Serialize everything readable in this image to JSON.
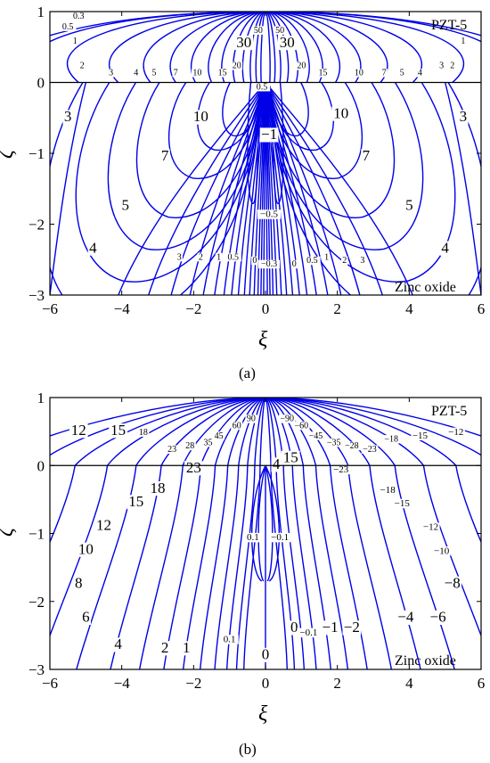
{
  "figure": {
    "caption_a": "(a)",
    "caption_b": "(b)"
  },
  "chart_data": [
    {
      "type": "contour",
      "panel": "(a)",
      "xlabel": "ξ",
      "ylabel": "ζ",
      "xlim": [
        -6,
        6
      ],
      "ylim": [
        -3,
        1
      ],
      "xticks": [
        "−6",
        "−4",
        "−2",
        "0",
        "2",
        "4",
        "6"
      ],
      "yticks": [
        "1",
        "0",
        "−1",
        "−2",
        "−3"
      ],
      "interface_y": 0,
      "upper_material": "PZT-5",
      "lower_material": "Zinc oxide",
      "line_color": "#0000e6",
      "upper_levels": [
        0.3,
        0.5,
        1,
        2,
        3,
        4,
        5,
        7,
        10,
        15,
        20,
        30,
        50
      ],
      "lower_levels": [
        -1,
        -0.5,
        -0.3,
        0,
        0.5,
        1,
        2,
        3,
        4,
        5,
        7,
        10
      ],
      "contour_labels": [
        {
          "text": "0.3",
          "x": -5.2,
          "y": 0.9
        },
        {
          "text": "0.5",
          "x": -5.5,
          "y": 0.75
        },
        {
          "text": "1",
          "x": -5.3,
          "y": 0.55
        },
        {
          "text": "2",
          "x": -5.1,
          "y": 0.2
        },
        {
          "text": "3",
          "x": -4.3,
          "y": 0.1
        },
        {
          "text": "4",
          "x": -3.6,
          "y": 0.1
        },
        {
          "text": "5",
          "x": -3.1,
          "y": 0.1
        },
        {
          "text": "7",
          "x": -2.5,
          "y": 0.1
        },
        {
          "text": "10",
          "x": -1.9,
          "y": 0.1
        },
        {
          "text": "15",
          "x": -1.2,
          "y": 0.1
        },
        {
          "text": "20",
          "x": -0.8,
          "y": 0.2
        },
        {
          "text": "30",
          "x": -0.6,
          "y": 0.5
        },
        {
          "text": "50",
          "x": -0.2,
          "y": 0.7
        },
        {
          "text": "50",
          "x": 0.4,
          "y": 0.7
        },
        {
          "text": "30",
          "x": 0.6,
          "y": 0.5
        },
        {
          "text": "20",
          "x": 1.0,
          "y": 0.2
        },
        {
          "text": "15",
          "x": 1.6,
          "y": 0.1
        },
        {
          "text": "10",
          "x": 2.6,
          "y": 0.1
        },
        {
          "text": "7",
          "x": 3.3,
          "y": 0.1
        },
        {
          "text": "5",
          "x": 3.8,
          "y": 0.1
        },
        {
          "text": "4",
          "x": 4.3,
          "y": 0.1
        },
        {
          "text": "3",
          "x": 4.9,
          "y": 0.2
        },
        {
          "text": "1",
          "x": 5.5,
          "y": 0.55
        },
        {
          "text": "2",
          "x": 5.2,
          "y": 0.2
        },
        {
          "text": "3",
          "x": -5.5,
          "y": -0.55
        },
        {
          "text": "3",
          "x": 5.5,
          "y": -0.55
        },
        {
          "text": "10",
          "x": -1.8,
          "y": -0.55
        },
        {
          "text": "10",
          "x": 2.1,
          "y": -0.5
        },
        {
          "text": "7",
          "x": -2.8,
          "y": -1.1
        },
        {
          "text": "7",
          "x": 2.8,
          "y": -1.1
        },
        {
          "text": "5",
          "x": -3.9,
          "y": -1.8
        },
        {
          "text": "5",
          "x": 4.0,
          "y": -1.8
        },
        {
          "text": "4",
          "x": -4.8,
          "y": -2.4
        },
        {
          "text": "4",
          "x": 5.0,
          "y": -2.4
        },
        {
          "text": "3",
          "x": -2.4,
          "y": -2.5
        },
        {
          "text": "2",
          "x": -1.8,
          "y": -2.5
        },
        {
          "text": "1",
          "x": -1.3,
          "y": -2.5
        },
        {
          "text": "0.5",
          "x": -0.9,
          "y": -2.5
        },
        {
          "text": "0",
          "x": -0.3,
          "y": -2.55
        },
        {
          "text": "−0.3",
          "x": 0.1,
          "y": -2.6
        },
        {
          "text": "0",
          "x": 0.8,
          "y": -2.6
        },
        {
          "text": "0.5",
          "x": 1.3,
          "y": -2.55
        },
        {
          "text": "1",
          "x": 1.7,
          "y": -2.5
        },
        {
          "text": "2",
          "x": 2.2,
          "y": -2.55
        },
        {
          "text": "3",
          "x": 2.7,
          "y": -2.55
        },
        {
          "text": "−1",
          "x": 0.1,
          "y": -0.8
        },
        {
          "text": "−0.5",
          "x": 0.1,
          "y": -1.9
        },
        {
          "text": "0.5",
          "x": -0.1,
          "y": -0.1
        }
      ]
    },
    {
      "type": "contour",
      "panel": "(b)",
      "xlabel": "ξ",
      "ylabel": "ζ",
      "xlim": [
        -6,
        6
      ],
      "ylim": [
        -3,
        1
      ],
      "xticks": [
        "−6",
        "−4",
        "−2",
        "0",
        "2",
        "4",
        "6"
      ],
      "yticks": [
        "1",
        "0",
        "−1",
        "−2",
        "−3"
      ],
      "interface_y": 0,
      "upper_material": "PZT-5",
      "lower_material": "Zinc oxide",
      "line_color": "#0000e6",
      "contour_labels": [
        {
          "text": "90",
          "x": -0.4,
          "y": 0.65
        },
        {
          "text": "60",
          "x": -0.8,
          "y": 0.55
        },
        {
          "text": "45",
          "x": -1.3,
          "y": 0.4
        },
        {
          "text": "35",
          "x": -1.6,
          "y": 0.3
        },
        {
          "text": "28",
          "x": -2.1,
          "y": 0.25
        },
        {
          "text": "23",
          "x": -2.6,
          "y": 0.2
        },
        {
          "text": "18",
          "x": -3.4,
          "y": 0.45
        },
        {
          "text": "15",
          "x": -4.1,
          "y": 0.45
        },
        {
          "text": "12",
          "x": -5.2,
          "y": 0.45
        },
        {
          "text": "−90",
          "x": 0.6,
          "y": 0.65
        },
        {
          "text": "−60",
          "x": 1.0,
          "y": 0.55
        },
        {
          "text": "−45",
          "x": 1.4,
          "y": 0.4
        },
        {
          "text": "−35",
          "x": 1.9,
          "y": 0.3
        },
        {
          "text": "−28",
          "x": 2.4,
          "y": 0.25
        },
        {
          "text": "−23",
          "x": 2.9,
          "y": 0.2
        },
        {
          "text": "−18",
          "x": 3.5,
          "y": 0.35
        },
        {
          "text": "−15",
          "x": 4.3,
          "y": 0.4
        },
        {
          "text": "−12",
          "x": 5.3,
          "y": 0.45
        },
        {
          "text": "23",
          "x": -2.0,
          "y": -0.1
        },
        {
          "text": "−23",
          "x": 2.1,
          "y": -0.1
        },
        {
          "text": "18",
          "x": -3.0,
          "y": -0.4
        },
        {
          "text": "−18",
          "x": 3.4,
          "y": -0.4
        },
        {
          "text": "15",
          "x": -3.6,
          "y": -0.6
        },
        {
          "text": "−15",
          "x": 3.8,
          "y": -0.6
        },
        {
          "text": "12",
          "x": -4.5,
          "y": -0.95
        },
        {
          "text": "−12",
          "x": 4.6,
          "y": -0.95
        },
        {
          "text": "10",
          "x": -5.0,
          "y": -1.3
        },
        {
          "text": "−10",
          "x": 4.9,
          "y": -1.3
        },
        {
          "text": "8",
          "x": -5.2,
          "y": -1.8
        },
        {
          "text": "−8",
          "x": 5.2,
          "y": -1.8
        },
        {
          "text": "6",
          "x": -5.0,
          "y": -2.3
        },
        {
          "text": "−6",
          "x": 4.8,
          "y": -2.3
        },
        {
          "text": "4",
          "x": -4.1,
          "y": -2.7
        },
        {
          "text": "−4",
          "x": 3.9,
          "y": -2.3
        },
        {
          "text": "2",
          "x": -2.8,
          "y": -2.75
        },
        {
          "text": "1",
          "x": -2.2,
          "y": -2.75
        },
        {
          "text": "0.1",
          "x": -1.0,
          "y": -2.6
        },
        {
          "text": "0",
          "x": 0.0,
          "y": -2.85
        },
        {
          "text": "0",
          "x": 0.8,
          "y": -2.45
        },
        {
          "text": "−0.1",
          "x": 1.2,
          "y": -2.5
        },
        {
          "text": "−1",
          "x": 1.8,
          "y": -2.45
        },
        {
          "text": "−2",
          "x": 2.4,
          "y": -2.45
        },
        {
          "text": "0.1",
          "x": -0.35,
          "y": -1.1
        },
        {
          "text": "−0.1",
          "x": 0.4,
          "y": -1.1
        },
        {
          "text": "4",
          "x": 0.3,
          "y": -0.05
        },
        {
          "text": "15",
          "x": 0.7,
          "y": 0.05
        }
      ]
    }
  ]
}
